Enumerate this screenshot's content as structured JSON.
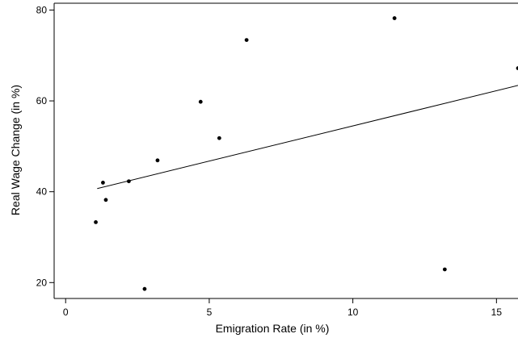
{
  "chart_data": {
    "type": "scatter",
    "xlabel": "Emigration Rate (in %)",
    "ylabel": "Real Wage Change (in %)",
    "xlim": [
      -0.4,
      15.75
    ],
    "ylim": [
      16.5,
      81.5
    ],
    "x_ticks": [
      0,
      5,
      10,
      15
    ],
    "y_ticks": [
      20,
      40,
      60,
      80
    ],
    "x_tick_labels": [
      "0",
      "5",
      "10",
      "15"
    ],
    "y_tick_labels": [
      "20",
      "40",
      "60",
      "80"
    ],
    "grid": false,
    "legend": "none",
    "colors": {
      "point": "#000000",
      "line": "#000000",
      "axis": "#000000",
      "background": "#ffffff"
    },
    "points": [
      {
        "x": 1.05,
        "y": 33.3
      },
      {
        "x": 1.3,
        "y": 42.0
      },
      {
        "x": 1.4,
        "y": 38.2
      },
      {
        "x": 2.2,
        "y": 42.3
      },
      {
        "x": 2.75,
        "y": 18.6
      },
      {
        "x": 3.2,
        "y": 46.9
      },
      {
        "x": 4.7,
        "y": 59.8
      },
      {
        "x": 5.35,
        "y": 51.8
      },
      {
        "x": 6.3,
        "y": 73.4
      },
      {
        "x": 11.45,
        "y": 78.2
      },
      {
        "x": 13.2,
        "y": 22.9
      },
      {
        "x": 15.75,
        "y": 67.2
      }
    ],
    "fit_line": {
      "x": [
        1.1,
        15.75
      ],
      "y": [
        40.7,
        63.4
      ]
    }
  }
}
